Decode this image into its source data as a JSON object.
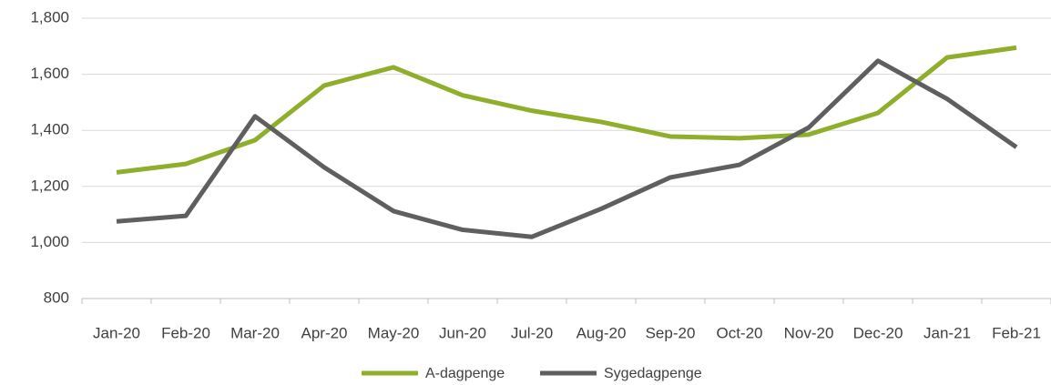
{
  "chart_data": {
    "type": "line",
    "categories": [
      "Jan-20",
      "Feb-20",
      "Mar-20",
      "Apr-20",
      "May-20",
      "Jun-20",
      "Jul-20",
      "Aug-20",
      "Sep-20",
      "Oct-20",
      "Nov-20",
      "Dec-20",
      "Jan-21",
      "Feb-21"
    ],
    "series": [
      {
        "name": "A-dagpenge",
        "color": "#8fae2b",
        "values": [
          1250,
          1280,
          1365,
          1560,
          1625,
          1525,
          1470,
          1430,
          1378,
          1372,
          1385,
          1462,
          1660,
          1695
        ]
      },
      {
        "name": "Sygedagpenge",
        "color": "#5f5f5f",
        "values": [
          1075,
          1095,
          1450,
          1268,
          1112,
          1045,
          1020,
          1120,
          1232,
          1277,
          1410,
          1648,
          1512,
          1340
        ]
      }
    ],
    "ylim": [
      800,
      1800
    ],
    "yticks": [
      800,
      {
        "value": 1000,
        "label": "1,000"
      },
      {
        "value": 1200,
        "label": "1,200"
      },
      {
        "value": 1400,
        "label": "1,400"
      },
      {
        "value": 1600,
        "label": "1,600"
      },
      {
        "value": 1800,
        "label": "1,800"
      }
    ],
    "grid": true,
    "legend": "bottom"
  }
}
